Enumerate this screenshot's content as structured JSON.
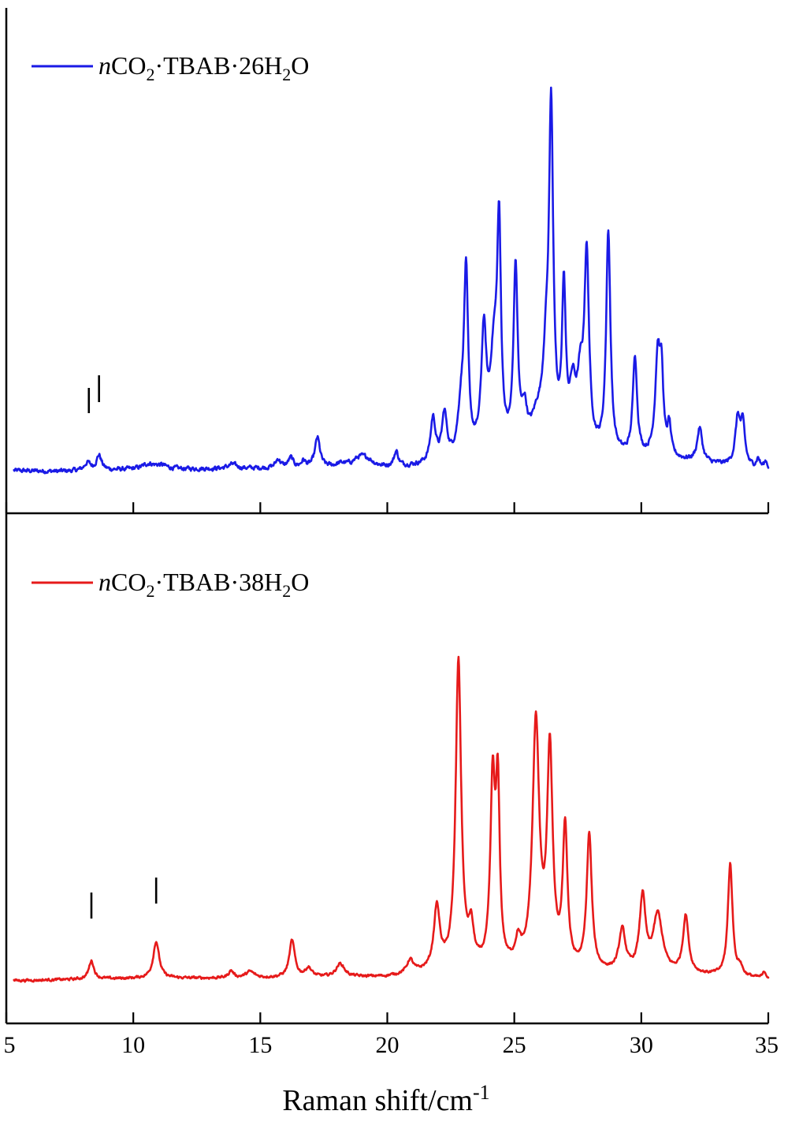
{
  "chart_data": {
    "type": "line",
    "xlabel": "Raman shift/cm",
    "xlabel_sup": "-1",
    "xlim": [
      5,
      35
    ],
    "x_ticks": [
      5,
      10,
      15,
      20,
      25,
      30,
      35
    ],
    "x_tick_labels": [
      "5",
      "10",
      "15",
      "20",
      "25",
      "30",
      "35"
    ],
    "panels": [
      {
        "legend": {
          "italic": "n",
          "parts": [
            {
              "t": "CO"
            },
            {
              "t": "2",
              "sub": true
            },
            {
              "t": "·TBAB·26H"
            },
            {
              "t": "2",
              "sub": true
            },
            {
              "t": "O"
            }
          ]
        },
        "legend_position": "top-left",
        "color": "#1a1ae6",
        "markers": [
          8.25,
          8.65
        ],
        "ylim": [
          0,
          100
        ],
        "baseline": [
          [
            5.3,
            1.5
          ],
          [
            7,
            1.3
          ],
          [
            10,
            1.7
          ],
          [
            15,
            2.0
          ],
          [
            20,
            2.0
          ],
          [
            22,
            2.5
          ],
          [
            26,
            4.5
          ],
          [
            31,
            4.0
          ],
          [
            35,
            1.5
          ]
        ],
        "noise": 0.9,
        "peaks": [
          [
            8.2,
            1.8,
            0.15
          ],
          [
            8.65,
            3.5,
            0.12
          ],
          [
            10.6,
            1.2,
            0.3
          ],
          [
            11.1,
            0.8,
            0.3
          ],
          [
            13.9,
            1.0,
            0.2
          ],
          [
            15.7,
            2.0,
            0.12
          ],
          [
            16.2,
            2.3,
            0.12
          ],
          [
            16.7,
            1.5,
            0.1
          ],
          [
            17.25,
            7.0,
            0.12
          ],
          [
            18.2,
            0.8,
            0.3
          ],
          [
            18.9,
            1.8,
            0.3
          ],
          [
            19.2,
            1.5,
            0.3
          ],
          [
            20.35,
            3.5,
            0.1
          ],
          [
            21.8,
            10.5,
            0.12
          ],
          [
            22.25,
            11.0,
            0.12
          ],
          [
            22.9,
            10.0,
            0.15
          ],
          [
            23.1,
            42.5,
            0.1
          ],
          [
            23.8,
            28.0,
            0.12
          ],
          [
            24.2,
            22.0,
            0.18
          ],
          [
            24.4,
            48.5,
            0.09
          ],
          [
            25.05,
            42.5,
            0.1
          ],
          [
            25.4,
            8.0,
            0.12
          ],
          [
            25.9,
            7.0,
            0.3
          ],
          [
            26.25,
            17.0,
            0.15
          ],
          [
            26.45,
            77.0,
            0.1
          ],
          [
            26.95,
            36.0,
            0.09
          ],
          [
            27.3,
            13.0,
            0.15
          ],
          [
            27.6,
            14.0,
            0.15
          ],
          [
            27.85,
            44.5,
            0.11
          ],
          [
            28.7,
            52.5,
            0.1
          ],
          [
            29.75,
            23.5,
            0.1
          ],
          [
            30.65,
            24.0,
            0.12
          ],
          [
            30.8,
            16.0,
            0.08
          ],
          [
            31.1,
            7.0,
            0.08
          ],
          [
            32.3,
            8.0,
            0.12
          ],
          [
            33.8,
            11.0,
            0.12
          ],
          [
            34.0,
            9.0,
            0.1
          ],
          [
            34.6,
            2.2,
            0.08
          ],
          [
            34.9,
            1.8,
            0.08
          ]
        ]
      },
      {
        "legend": {
          "italic": "n",
          "parts": [
            {
              "t": "CO"
            },
            {
              "t": "2",
              "sub": true
            },
            {
              "t": "·TBAB·38H"
            },
            {
              "t": "2",
              "sub": true
            },
            {
              "t": "O"
            }
          ]
        },
        "legend_position": "top-left",
        "color": "#e61a1a",
        "markers": [
          8.35,
          10.9
        ],
        "ylim": [
          0,
          100
        ],
        "baseline": [
          [
            5.3,
            1.2
          ],
          [
            10,
            1.7
          ],
          [
            15,
            1.8
          ],
          [
            20,
            2.0
          ],
          [
            22.5,
            3.5
          ],
          [
            27,
            3.0
          ],
          [
            32,
            2.5
          ],
          [
            35,
            1.5
          ]
        ],
        "noise": 0.55,
        "peaks": [
          [
            8.35,
            4.5,
            0.12
          ],
          [
            10.9,
            9.0,
            0.14
          ],
          [
            13.85,
            1.7,
            0.12
          ],
          [
            14.6,
            1.5,
            0.2
          ],
          [
            16.25,
            9.0,
            0.13
          ],
          [
            16.9,
            2.2,
            0.15
          ],
          [
            18.15,
            3.2,
            0.2
          ],
          [
            20.9,
            3.2,
            0.15
          ],
          [
            21.95,
            15.0,
            0.14
          ],
          [
            22.8,
            75.0,
            0.13
          ],
          [
            23.3,
            8.5,
            0.12
          ],
          [
            24.15,
            44.0,
            0.11
          ],
          [
            24.35,
            41.0,
            0.09
          ],
          [
            25.15,
            5.5,
            0.13
          ],
          [
            25.85,
            59.5,
            0.16
          ],
          [
            26.4,
            52.0,
            0.13
          ],
          [
            27.0,
            34.0,
            0.11
          ],
          [
            27.95,
            33.0,
            0.12
          ],
          [
            29.25,
            10.0,
            0.15
          ],
          [
            30.05,
            18.0,
            0.14
          ],
          [
            30.65,
            14.0,
            0.22
          ],
          [
            31.75,
            14.0,
            0.13
          ],
          [
            33.5,
            27.5,
            0.11
          ],
          [
            33.9,
            2.0,
            0.1
          ],
          [
            34.85,
            1.5,
            0.08
          ]
        ]
      }
    ]
  }
}
